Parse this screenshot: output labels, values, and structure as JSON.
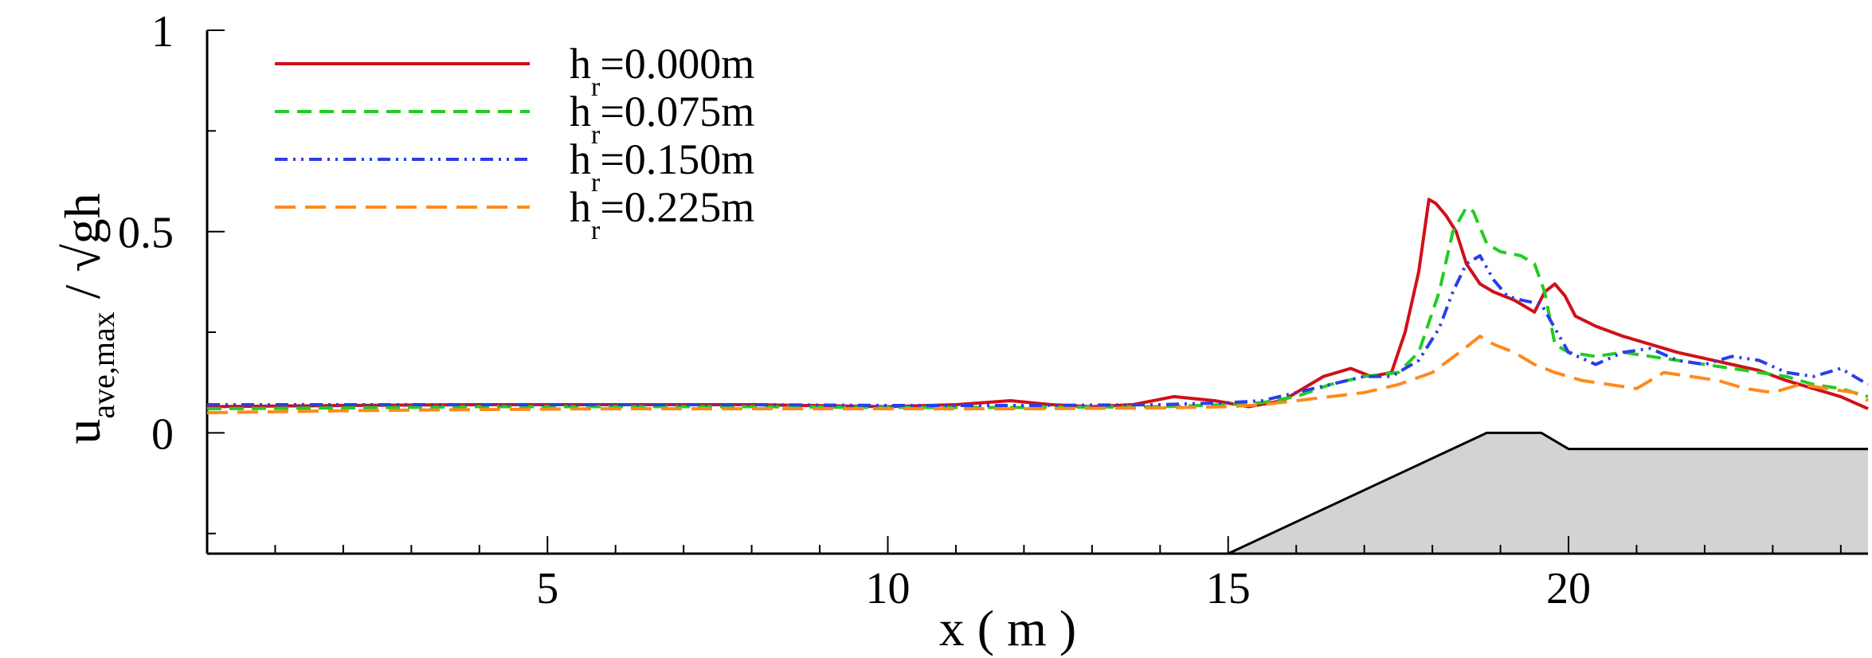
{
  "chart_data": {
    "type": "line",
    "title": "",
    "xlabel": "x ( m )",
    "ylabel": "u",
    "ylabel_subscript": "ave,max",
    "ylabel_suffix": " / √gh",
    "xlim": [
      0,
      24.4
    ],
    "ylim": [
      -0.3,
      1.0
    ],
    "xticks": [
      5,
      10,
      15,
      20
    ],
    "yticks": [
      0,
      0.5,
      1
    ],
    "ytick_labels": [
      "0",
      "0.5",
      "1"
    ],
    "legend_position": "top-left",
    "series": [
      {
        "name_main": "h",
        "name_sub": "r",
        "name_rest": "=0.000m",
        "color": "#d0101a",
        "dash": "solid",
        "x": [
          0,
          2,
          4,
          6,
          8,
          10,
          11,
          11.8,
          12.4,
          13,
          13.6,
          14.2,
          14.8,
          15.3,
          15.8,
          16.4,
          16.8,
          17.1,
          17.4,
          17.6,
          17.8,
          17.95,
          18.05,
          18.2,
          18.35,
          18.5,
          18.7,
          18.9,
          19.2,
          19.5,
          19.65,
          19.8,
          19.95,
          20.1,
          20.4,
          20.8,
          21.2,
          21.6,
          22.0,
          22.4,
          22.8,
          23.2,
          23.6,
          24.0,
          24.4
        ],
        "y": [
          0.065,
          0.068,
          0.07,
          0.07,
          0.07,
          0.065,
          0.07,
          0.08,
          0.07,
          0.065,
          0.07,
          0.09,
          0.08,
          0.065,
          0.08,
          0.14,
          0.16,
          0.14,
          0.15,
          0.25,
          0.4,
          0.58,
          0.57,
          0.54,
          0.5,
          0.42,
          0.37,
          0.35,
          0.33,
          0.3,
          0.35,
          0.37,
          0.34,
          0.29,
          0.265,
          0.24,
          0.22,
          0.2,
          0.185,
          0.17,
          0.155,
          0.13,
          0.11,
          0.09,
          0.06
        ]
      },
      {
        "name_main": "h",
        "name_sub": "r",
        "name_rest": "=0.075m",
        "color": "#22cc22",
        "dash": "dashed",
        "x": [
          0,
          2,
          4,
          6,
          8,
          10,
          12,
          14,
          15,
          15.5,
          16,
          16.5,
          17,
          17.5,
          17.8,
          18.1,
          18.3,
          18.5,
          18.6,
          18.8,
          19.0,
          19.3,
          19.5,
          19.65,
          19.8,
          20.0,
          20.4,
          20.8,
          21.2,
          21.6,
          22.0,
          22.4,
          22.8,
          23.2,
          23.6,
          24.0,
          24.4
        ],
        "y": [
          0.06,
          0.062,
          0.065,
          0.065,
          0.065,
          0.063,
          0.063,
          0.065,
          0.07,
          0.075,
          0.09,
          0.12,
          0.14,
          0.15,
          0.2,
          0.35,
          0.5,
          0.56,
          0.55,
          0.47,
          0.45,
          0.44,
          0.42,
          0.35,
          0.22,
          0.2,
          0.19,
          0.2,
          0.19,
          0.18,
          0.17,
          0.16,
          0.15,
          0.14,
          0.12,
          0.11,
          0.09
        ]
      },
      {
        "name_main": "h",
        "name_sub": "r",
        "name_rest": "=0.150m",
        "color": "#2a3fe8",
        "dash": "dashdotdot",
        "x": [
          0,
          2,
          4,
          6,
          8,
          10,
          12,
          14,
          15,
          15.5,
          16,
          16.5,
          17,
          17.4,
          17.8,
          18.1,
          18.3,
          18.5,
          18.7,
          18.9,
          19.1,
          19.3,
          19.6,
          19.8,
          20.0,
          20.4,
          20.8,
          21.2,
          21.6,
          22.0,
          22.4,
          22.8,
          23.2,
          23.6,
          24.0,
          24.4
        ],
        "y": [
          0.07,
          0.07,
          0.07,
          0.07,
          0.07,
          0.068,
          0.068,
          0.07,
          0.075,
          0.08,
          0.1,
          0.12,
          0.14,
          0.14,
          0.18,
          0.26,
          0.35,
          0.42,
          0.44,
          0.38,
          0.34,
          0.33,
          0.32,
          0.26,
          0.2,
          0.17,
          0.2,
          0.21,
          0.18,
          0.17,
          0.19,
          0.18,
          0.15,
          0.14,
          0.16,
          0.12
        ]
      },
      {
        "name_main": "h",
        "name_sub": "r",
        "name_rest": "=0.225m",
        "color": "#ff8a1c",
        "dash": "longdash",
        "x": [
          0,
          2,
          4,
          6,
          8,
          10,
          12,
          14,
          15,
          15.5,
          16,
          16.5,
          17,
          17.5,
          18,
          18.4,
          18.7,
          18.9,
          19.2,
          19.5,
          19.8,
          20.2,
          20.6,
          21.0,
          21.4,
          21.8,
          22.2,
          22.6,
          23.0,
          23.4,
          23.8,
          24.2,
          24.4
        ],
        "y": [
          0.05,
          0.055,
          0.058,
          0.06,
          0.06,
          0.06,
          0.06,
          0.062,
          0.065,
          0.07,
          0.08,
          0.09,
          0.1,
          0.12,
          0.15,
          0.2,
          0.24,
          0.22,
          0.2,
          0.17,
          0.15,
          0.13,
          0.12,
          0.11,
          0.15,
          0.14,
          0.13,
          0.11,
          0.1,
          0.12,
          0.11,
          0.1,
          0.08
        ]
      }
    ],
    "bathymetry": {
      "x": [
        15.0,
        18.8,
        19.6,
        20.0,
        24.4
      ],
      "y": [
        -0.3,
        0.0,
        0.0,
        -0.04,
        -0.04
      ],
      "fill": "#d3d3d3"
    }
  }
}
